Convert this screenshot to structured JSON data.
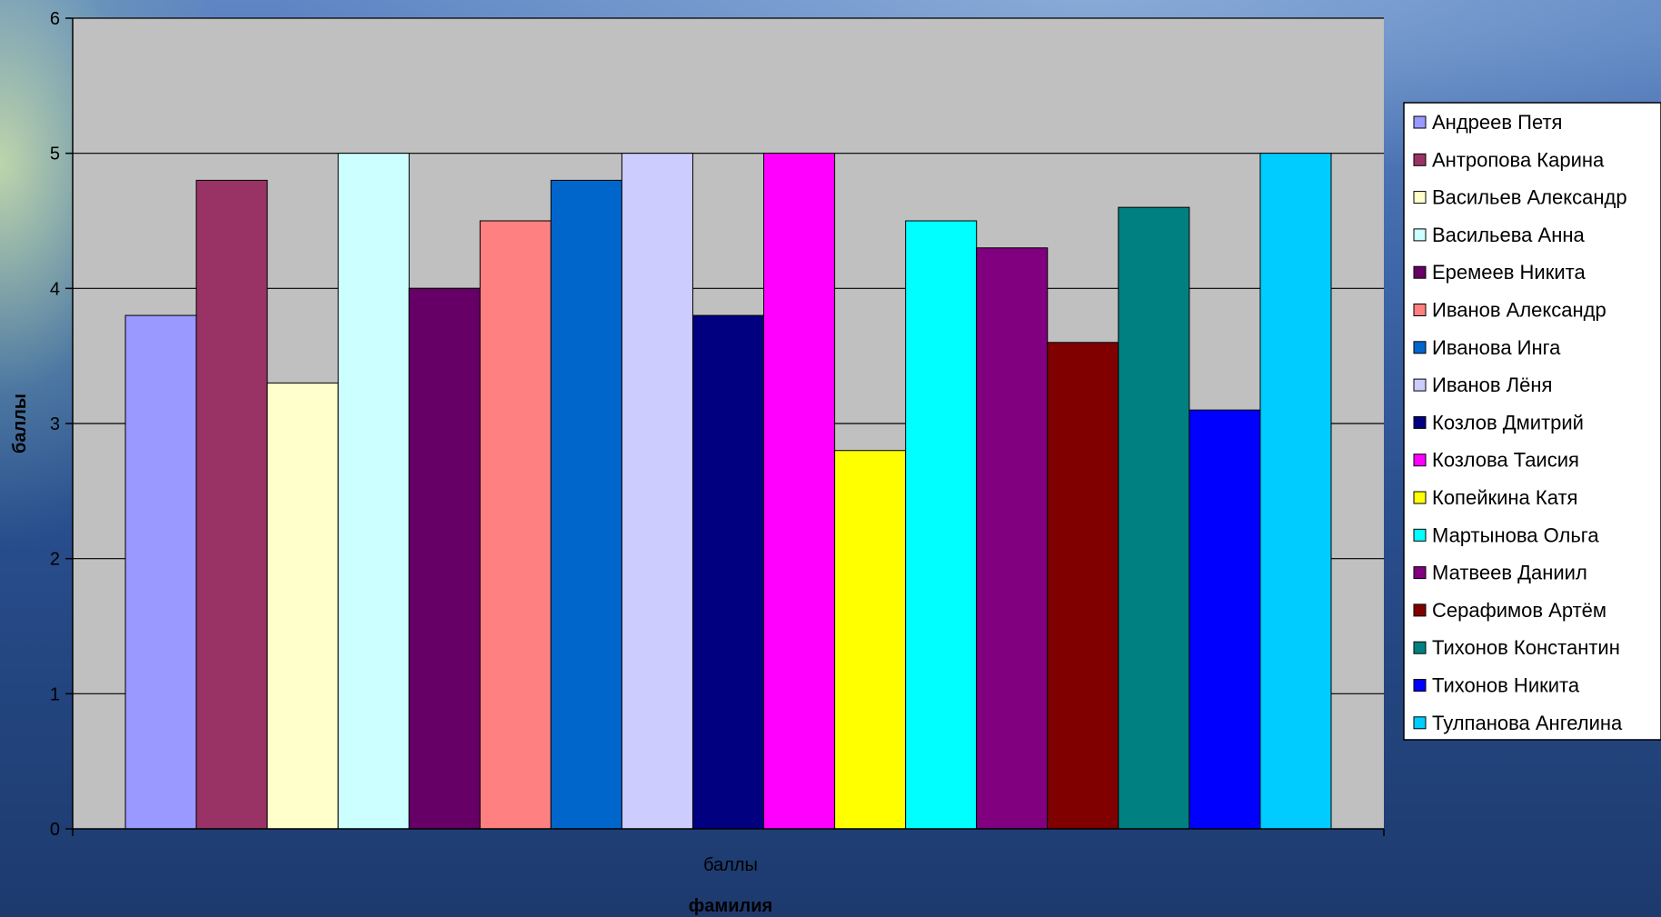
{
  "chart_data": {
    "type": "bar",
    "ylabel": "баллы",
    "xlabel": "фамилия",
    "categories": [
      "баллы"
    ],
    "ylim": [
      0,
      6
    ],
    "yticks": [
      0,
      1,
      2,
      3,
      4,
      5,
      6
    ],
    "grid": true,
    "legend_position": "right",
    "plot_background": "#c0c0c0",
    "series": [
      {
        "name": "Андреев Петя",
        "values": [
          3.8
        ],
        "color": "#9999ff"
      },
      {
        "name": "Антропова Карина",
        "values": [
          4.8
        ],
        "color": "#993366"
      },
      {
        "name": "Васильев Александр",
        "values": [
          3.3
        ],
        "color": "#ffffcc"
      },
      {
        "name": "Васильева Анна",
        "values": [
          5
        ],
        "color": "#ccffff"
      },
      {
        "name": "Еремеев Никита",
        "values": [
          4
        ],
        "color": "#660066"
      },
      {
        "name": "Иванов Александр",
        "values": [
          4.5
        ],
        "color": "#ff8080"
      },
      {
        "name": "Иванова Инга",
        "values": [
          4.8
        ],
        "color": "#0066cc"
      },
      {
        "name": "Иванов Лёня",
        "values": [
          5
        ],
        "color": "#ccccff"
      },
      {
        "name": "Козлов Дмитрий",
        "values": [
          3.8
        ],
        "color": "#000080"
      },
      {
        "name": "Козлова Таисия",
        "values": [
          5
        ],
        "color": "#ff00ff"
      },
      {
        "name": "Копейкина Катя",
        "values": [
          2.8
        ],
        "color": "#ffff00"
      },
      {
        "name": "Мартынова Ольга",
        "values": [
          4.5
        ],
        "color": "#00ffff"
      },
      {
        "name": "Матвеев Даниил",
        "values": [
          4.3
        ],
        "color": "#800080"
      },
      {
        "name": "Серафимов Артём",
        "values": [
          3.6
        ],
        "color": "#800000"
      },
      {
        "name": "Тихонов Константин",
        "values": [
          4.6
        ],
        "color": "#008080"
      },
      {
        "name": "Тихонов Никита",
        "values": [
          3.1
        ],
        "color": "#0000ff"
      },
      {
        "name": "Тулпанова Ангелина",
        "values": [
          5
        ],
        "color": "#00ccff"
      }
    ]
  }
}
